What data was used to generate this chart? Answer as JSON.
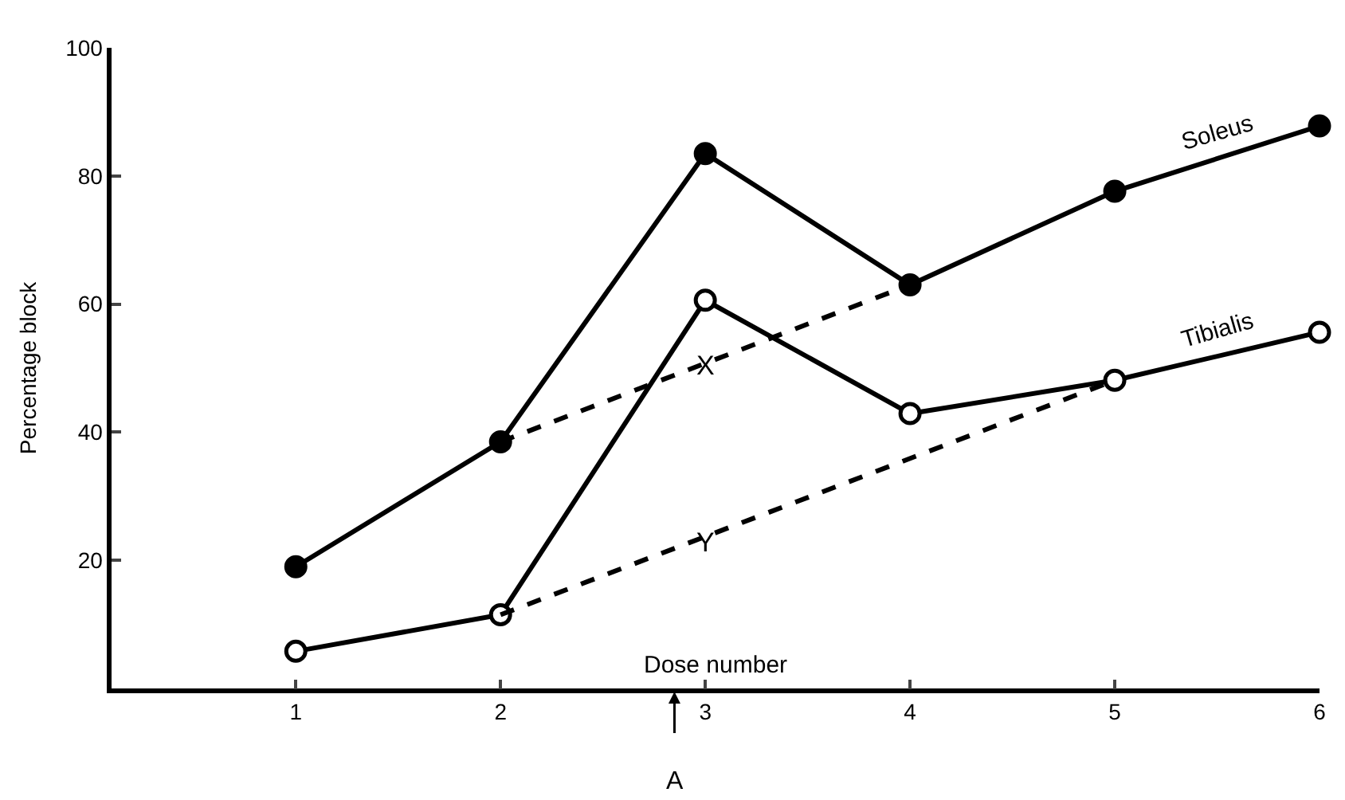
{
  "chart_data": {
    "type": "line",
    "xlabel": "Dose number",
    "ylabel": "Percentage block",
    "xlim": [
      0.1,
      6
    ],
    "xticks": [
      1,
      2,
      3,
      4,
      5,
      6
    ],
    "ylim": [
      0,
      100
    ],
    "yticks": [
      20,
      40,
      60,
      80,
      100
    ],
    "legend": false,
    "series": [
      {
        "name": "Soleus",
        "color": "#000000",
        "x": [
          1,
          2,
          3,
          4,
          5,
          6
        ],
        "values": [
          19,
          38.5,
          83.5,
          63,
          77.6,
          87.8
        ],
        "marker": "circle",
        "line_style": "solid"
      },
      {
        "name": "Tibialis",
        "color": "#000000",
        "x": [
          1,
          2,
          3,
          4,
          5,
          6
        ],
        "values": [
          5.8,
          11.5,
          60.6,
          42.9,
          48.1,
          55.6
        ],
        "marker": "circle",
        "line_style": "solid"
      },
      {
        "color": "#000000",
        "x": [
          2,
          4
        ],
        "values": [
          38.5,
          63
        ],
        "marker": "none",
        "line_style": "dashed"
      },
      {
        "color": "#000000",
        "x": [
          2,
          5
        ],
        "values": [
          11.5,
          48.1
        ],
        "marker": "none",
        "line_style": "dashed"
      }
    ],
    "annotations": [
      {
        "text": "X",
        "x": 3,
        "y": 50.4
      },
      {
        "text": "Y",
        "x": 3,
        "y": 22.7
      },
      "A"
    ]
  }
}
